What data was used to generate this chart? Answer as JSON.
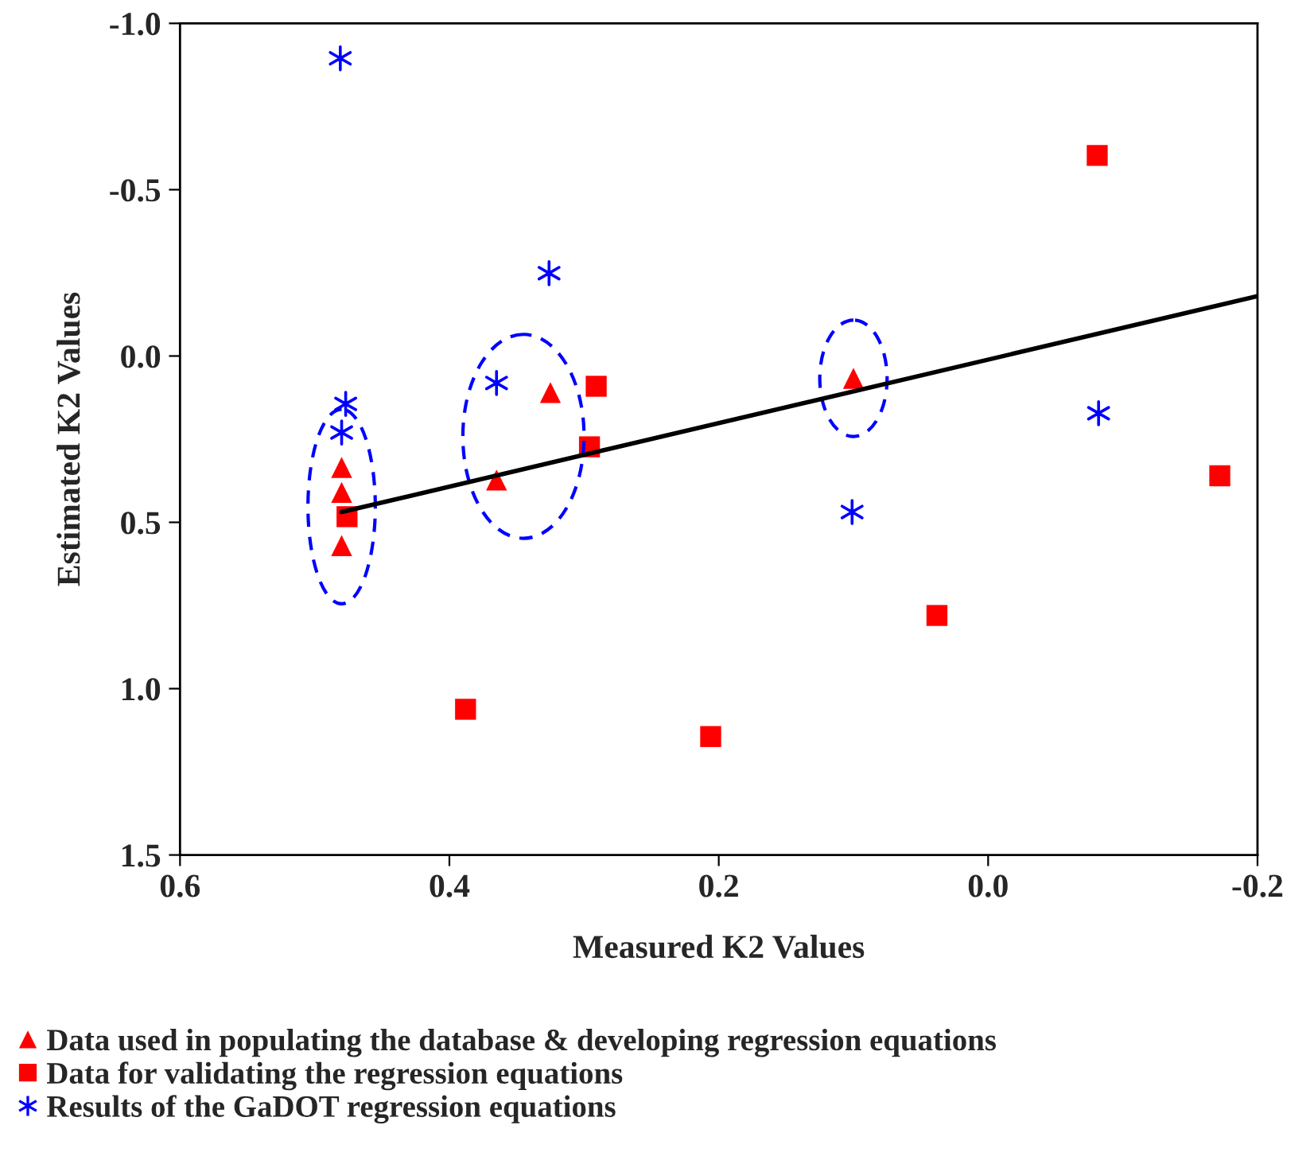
{
  "chart_data": {
    "type": "scatter",
    "xlabel": "Measured K2 Values",
    "ylabel": "Estimated K2 Values",
    "xlim": [
      0.6,
      -0.2
    ],
    "xticks": [
      0.6,
      0.4,
      0.2,
      {
        "value": 0,
        "label": "0.0"
      },
      -0.2
    ],
    "ylim": [
      1.5,
      -1.0
    ],
    "yticks": [
      {
        "value": -1,
        "label": "-1.0"
      },
      -0.5,
      {
        "value": 0,
        "label": "0.0"
      },
      0.5,
      {
        "value": 1,
        "label": "1.0"
      },
      1.5
    ],
    "grid": false,
    "legend": "bottom",
    "series": [
      {
        "name": "Data used in populating the database & developing regression equations",
        "color": "#ff0000",
        "marker": "triangle",
        "x": [
          0.48,
          0.48,
          0.48,
          0.365,
          0.325,
          0.1
        ],
        "values": [
          0.335,
          0.41,
          0.57,
          0.373,
          0.11,
          0.067
        ]
      },
      {
        "name": "Data for validating the regression equations",
        "color": "#ff0000",
        "marker": "square",
        "x": [
          0.476,
          0.296,
          0.291,
          0.388,
          0.206,
          0.038,
          -0.081,
          -0.172
        ],
        "values": [
          0.483,
          0.273,
          0.091,
          1.062,
          1.144,
          0.78,
          -0.603,
          0.36
        ]
      },
      {
        "name": "Results of the GaDOT regression equations",
        "color": "#0000ff",
        "marker": "cross",
        "x": [
          0.481,
          0.477,
          0.48,
          0.365,
          0.326,
          0.101,
          -0.082
        ],
        "values": [
          -0.895,
          0.144,
          0.23,
          0.081,
          -0.249,
          0.469,
          0.172
        ]
      },
      {
        "type": "line",
        "color": "#000000",
        "marker": "none",
        "line_style": "solid",
        "x": [
          0.48,
          -0.2
        ],
        "values": [
          0.469,
          -0.18
        ]
      }
    ]
  }
}
